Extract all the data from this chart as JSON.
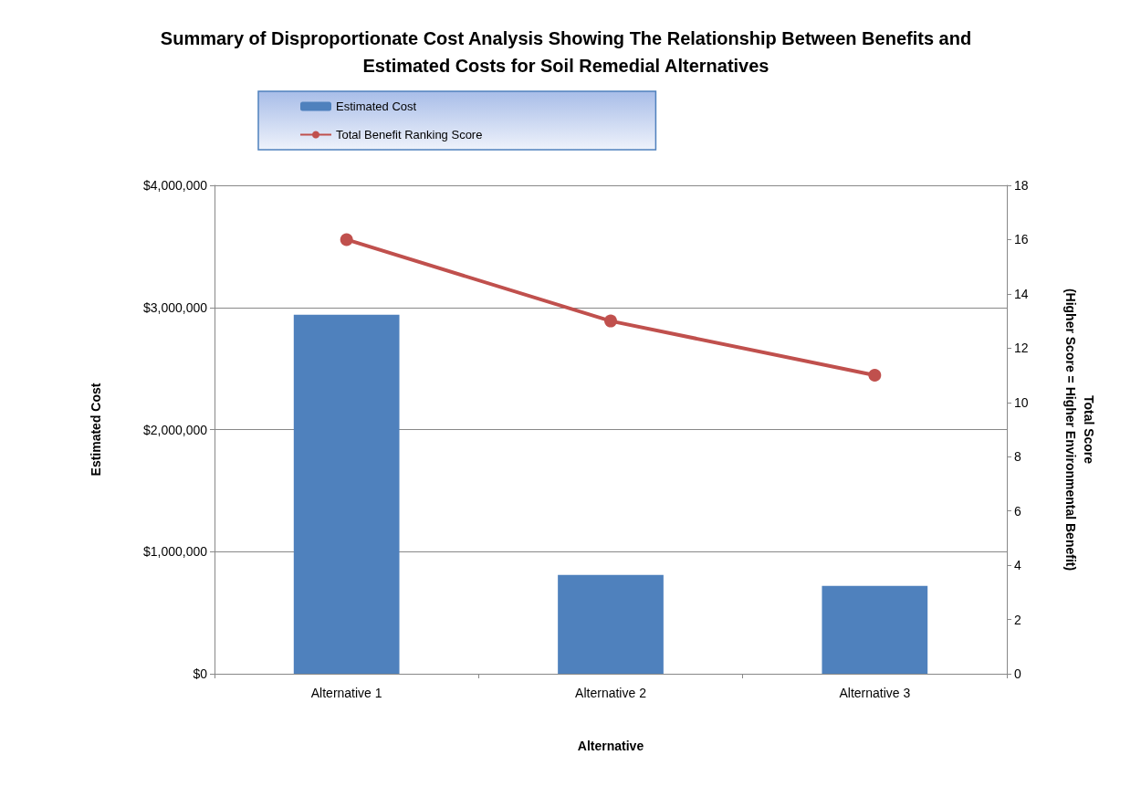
{
  "chart_data": {
    "type": "bar",
    "title": "Summary of Disproportionate Cost Analysis Showing The Relationship Between Benefits and\nEstimated Costs for Soil Remedial Alternatives",
    "xlabel": "Alternative",
    "ylabel": "Estimated Cost",
    "y2label": "Total Score\n(Higher Score = Higher Environmental Benefit)",
    "categories": [
      "Alternative 1",
      "Alternative 2",
      "Alternative 3"
    ],
    "series": [
      {
        "name": "Estimated Cost",
        "color": "#4f81bd",
        "values": [
          2940000,
          810000,
          720000
        ]
      },
      {
        "name": "Total Benefit Ranking Score",
        "type": "line",
        "axis": "y2",
        "color": "#c0504d",
        "marker": "circle",
        "values": [
          16,
          13,
          11
        ]
      }
    ],
    "ylim": [
      0,
      4000000
    ],
    "yticks": [
      {
        "value": 0,
        "label": "$0"
      },
      {
        "value": 1000000,
        "label": "$1,000,000"
      },
      {
        "value": 2000000,
        "label": "$2,000,000"
      },
      {
        "value": 3000000,
        "label": "$3,000,000"
      },
      {
        "value": 4000000,
        "label": "$4,000,000"
      }
    ],
    "y2lim": [
      0,
      18
    ],
    "y2ticks": [
      0,
      2,
      4,
      6,
      8,
      10,
      12,
      14,
      16,
      18
    ],
    "grid": "y",
    "legend": "top left"
  }
}
